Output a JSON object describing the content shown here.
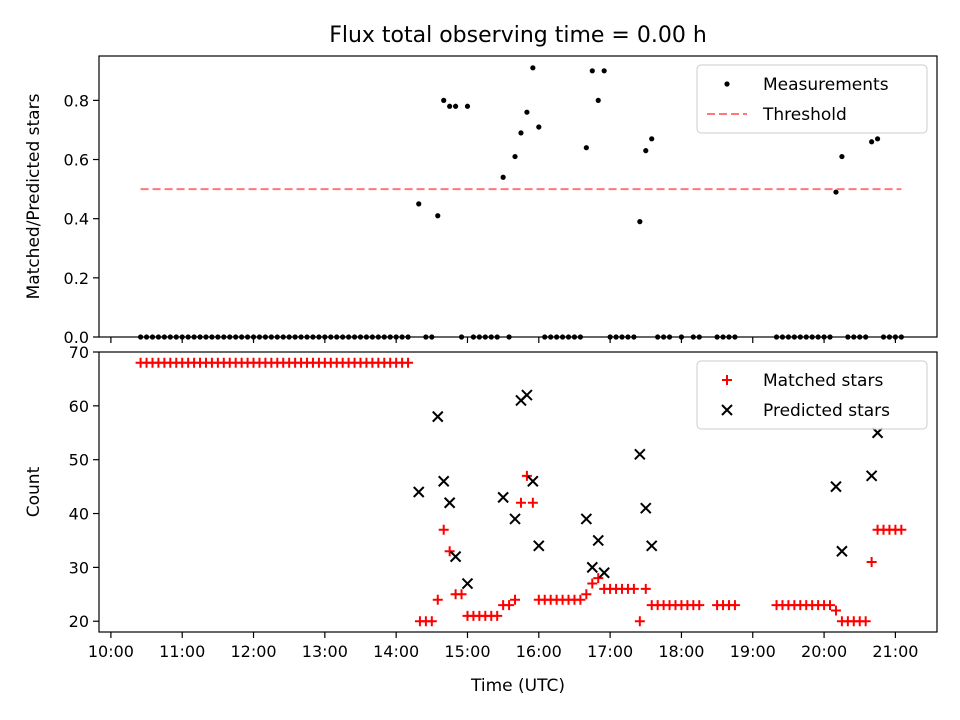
{
  "chart_data": [
    {
      "type": "scatter",
      "title": "Flux total observing time = 0.00 h",
      "xlabel": "",
      "ylabel": "Matched/Predicted stars",
      "xlim": [
        "09:50",
        "21:35"
      ],
      "ylim": [
        0,
        0.95
      ],
      "yticks": [
        0.0,
        0.2,
        0.4,
        0.6,
        0.8
      ],
      "ytick_labels": [
        "0.0",
        "0.2",
        "0.4",
        "0.6",
        "0.8"
      ],
      "legend_position": "top-right",
      "series": [
        {
          "name": "Measurements",
          "marker": "dot",
          "color": "#000000",
          "points": [
            [
              "10:25",
              0
            ],
            [
              "10:30",
              0
            ],
            [
              "10:35",
              0
            ],
            [
              "10:40",
              0
            ],
            [
              "10:45",
              0
            ],
            [
              "10:50",
              0
            ],
            [
              "10:55",
              0
            ],
            [
              "11:00",
              0
            ],
            [
              "11:05",
              0
            ],
            [
              "11:10",
              0
            ],
            [
              "11:15",
              0
            ],
            [
              "11:20",
              0
            ],
            [
              "11:25",
              0
            ],
            [
              "11:30",
              0
            ],
            [
              "11:35",
              0
            ],
            [
              "11:40",
              0
            ],
            [
              "11:45",
              0
            ],
            [
              "11:50",
              0
            ],
            [
              "11:55",
              0
            ],
            [
              "12:00",
              0
            ],
            [
              "12:05",
              0
            ],
            [
              "12:10",
              0
            ],
            [
              "12:15",
              0
            ],
            [
              "12:20",
              0
            ],
            [
              "12:25",
              0
            ],
            [
              "12:30",
              0
            ],
            [
              "12:35",
              0
            ],
            [
              "12:40",
              0
            ],
            [
              "12:45",
              0
            ],
            [
              "12:50",
              0
            ],
            [
              "12:55",
              0
            ],
            [
              "13:00",
              0
            ],
            [
              "13:05",
              0
            ],
            [
              "13:10",
              0
            ],
            [
              "13:15",
              0
            ],
            [
              "13:20",
              0
            ],
            [
              "13:25",
              0
            ],
            [
              "13:30",
              0
            ],
            [
              "13:35",
              0
            ],
            [
              "13:40",
              0
            ],
            [
              "13:45",
              0
            ],
            [
              "13:50",
              0
            ],
            [
              "13:55",
              0
            ],
            [
              "14:00",
              0
            ],
            [
              "14:05",
              0
            ],
            [
              "14:10",
              0
            ],
            [
              "14:19",
              0.45
            ],
            [
              "14:25",
              0
            ],
            [
              "14:30",
              0
            ],
            [
              "14:35",
              0.41
            ],
            [
              "14:40",
              0.8
            ],
            [
              "14:45",
              0.78
            ],
            [
              "14:50",
              0.78
            ],
            [
              "14:55",
              0
            ],
            [
              "15:00",
              0.78
            ],
            [
              "15:05",
              0
            ],
            [
              "15:10",
              0
            ],
            [
              "15:15",
              0
            ],
            [
              "15:20",
              0
            ],
            [
              "15:25",
              0
            ],
            [
              "15:30",
              0.54
            ],
            [
              "15:35",
              0
            ],
            [
              "15:40",
              0.61
            ],
            [
              "15:45",
              0.69
            ],
            [
              "15:50",
              0.76
            ],
            [
              "15:55",
              0.91
            ],
            [
              "16:00",
              0.71
            ],
            [
              "16:05",
              0
            ],
            [
              "16:10",
              0
            ],
            [
              "16:15",
              0
            ],
            [
              "16:20",
              0
            ],
            [
              "16:25",
              0
            ],
            [
              "16:30",
              0
            ],
            [
              "16:35",
              0
            ],
            [
              "16:40",
              0.64
            ],
            [
              "16:45",
              0.9
            ],
            [
              "16:50",
              0.8
            ],
            [
              "16:55",
              0.9
            ],
            [
              "17:00",
              0
            ],
            [
              "17:05",
              0
            ],
            [
              "17:10",
              0
            ],
            [
              "17:15",
              0
            ],
            [
              "17:20",
              0
            ],
            [
              "17:25",
              0.39
            ],
            [
              "17:30",
              0.63
            ],
            [
              "17:35",
              0.67
            ],
            [
              "17:40",
              0
            ],
            [
              "17:45",
              0
            ],
            [
              "17:50",
              0
            ],
            [
              "18:00",
              0
            ],
            [
              "18:10",
              0
            ],
            [
              "18:15",
              0
            ],
            [
              "18:30",
              0
            ],
            [
              "18:35",
              0
            ],
            [
              "18:40",
              0
            ],
            [
              "18:45",
              0
            ],
            [
              "19:20",
              0
            ],
            [
              "19:25",
              0
            ],
            [
              "19:30",
              0
            ],
            [
              "19:35",
              0
            ],
            [
              "19:40",
              0
            ],
            [
              "19:45",
              0
            ],
            [
              "19:50",
              0
            ],
            [
              "19:55",
              0
            ],
            [
              "20:00",
              0
            ],
            [
              "20:05",
              0
            ],
            [
              "20:10",
              0.49
            ],
            [
              "20:15",
              0.61
            ],
            [
              "20:20",
              0
            ],
            [
              "20:25",
              0
            ],
            [
              "20:30",
              0
            ],
            [
              "20:35",
              0
            ],
            [
              "20:40",
              0.66
            ],
            [
              "20:45",
              0.67
            ],
            [
              "20:50",
              0
            ],
            [
              "20:55",
              0
            ],
            [
              "21:00",
              0
            ],
            [
              "21:05",
              0
            ]
          ]
        },
        {
          "name": "Threshold",
          "marker": "dashed-line",
          "color": "#ff7777",
          "points": [
            [
              "10:25",
              0.5
            ],
            [
              "21:05",
              0.5
            ]
          ]
        }
      ]
    },
    {
      "type": "scatter",
      "xlabel": "Time (UTC)",
      "ylabel": "Count",
      "xlim": [
        "09:50",
        "21:35"
      ],
      "ylim": [
        18,
        70
      ],
      "yticks": [
        20,
        30,
        40,
        50,
        60,
        70
      ],
      "xticks": [
        "10:00",
        "11:00",
        "12:00",
        "13:00",
        "14:00",
        "15:00",
        "16:00",
        "17:00",
        "18:00",
        "19:00",
        "20:00",
        "21:00"
      ],
      "legend_position": "top-right",
      "series": [
        {
          "name": "Matched stars",
          "marker": "plus",
          "color": "#ff0000",
          "points": [
            [
              "10:25",
              68
            ],
            [
              "10:30",
              68
            ],
            [
              "10:35",
              68
            ],
            [
              "10:40",
              68
            ],
            [
              "10:45",
              68
            ],
            [
              "10:50",
              68
            ],
            [
              "10:55",
              68
            ],
            [
              "11:00",
              68
            ],
            [
              "11:05",
              68
            ],
            [
              "11:10",
              68
            ],
            [
              "11:15",
              68
            ],
            [
              "11:20",
              68
            ],
            [
              "11:25",
              68
            ],
            [
              "11:30",
              68
            ],
            [
              "11:35",
              68
            ],
            [
              "11:40",
              68
            ],
            [
              "11:45",
              68
            ],
            [
              "11:50",
              68
            ],
            [
              "11:55",
              68
            ],
            [
              "12:00",
              68
            ],
            [
              "12:05",
              68
            ],
            [
              "12:10",
              68
            ],
            [
              "12:15",
              68
            ],
            [
              "12:20",
              68
            ],
            [
              "12:25",
              68
            ],
            [
              "12:30",
              68
            ],
            [
              "12:35",
              68
            ],
            [
              "12:40",
              68
            ],
            [
              "12:45",
              68
            ],
            [
              "12:50",
              68
            ],
            [
              "12:55",
              68
            ],
            [
              "13:00",
              68
            ],
            [
              "13:05",
              68
            ],
            [
              "13:10",
              68
            ],
            [
              "13:15",
              68
            ],
            [
              "13:20",
              68
            ],
            [
              "13:25",
              68
            ],
            [
              "13:30",
              68
            ],
            [
              "13:35",
              68
            ],
            [
              "13:40",
              68
            ],
            [
              "13:45",
              68
            ],
            [
              "13:50",
              68
            ],
            [
              "13:55",
              68
            ],
            [
              "14:00",
              68
            ],
            [
              "14:05",
              68
            ],
            [
              "14:10",
              68
            ],
            [
              "14:20",
              20
            ],
            [
              "14:25",
              20
            ],
            [
              "14:30",
              20
            ],
            [
              "14:35",
              24
            ],
            [
              "14:40",
              37
            ],
            [
              "14:45",
              33
            ],
            [
              "14:50",
              25
            ],
            [
              "14:55",
              25
            ],
            [
              "15:00",
              21
            ],
            [
              "15:05",
              21
            ],
            [
              "15:10",
              21
            ],
            [
              "15:15",
              21
            ],
            [
              "15:20",
              21
            ],
            [
              "15:25",
              21
            ],
            [
              "15:30",
              23
            ],
            [
              "15:35",
              23
            ],
            [
              "15:40",
              24
            ],
            [
              "15:45",
              42
            ],
            [
              "15:50",
              47
            ],
            [
              "15:55",
              42
            ],
            [
              "16:00",
              24
            ],
            [
              "16:05",
              24
            ],
            [
              "16:10",
              24
            ],
            [
              "16:15",
              24
            ],
            [
              "16:20",
              24
            ],
            [
              "16:25",
              24
            ],
            [
              "16:30",
              24
            ],
            [
              "16:35",
              24
            ],
            [
              "16:40",
              25
            ],
            [
              "16:45",
              27
            ],
            [
              "16:50",
              28
            ],
            [
              "16:55",
              26
            ],
            [
              "17:00",
              26
            ],
            [
              "17:05",
              26
            ],
            [
              "17:10",
              26
            ],
            [
              "17:15",
              26
            ],
            [
              "17:20",
              26
            ],
            [
              "17:25",
              20
            ],
            [
              "17:30",
              26
            ],
            [
              "17:35",
              23
            ],
            [
              "17:40",
              23
            ],
            [
              "17:45",
              23
            ],
            [
              "17:50",
              23
            ],
            [
              "17:55",
              23
            ],
            [
              "18:00",
              23
            ],
            [
              "18:05",
              23
            ],
            [
              "18:10",
              23
            ],
            [
              "18:15",
              23
            ],
            [
              "18:30",
              23
            ],
            [
              "18:35",
              23
            ],
            [
              "18:40",
              23
            ],
            [
              "18:45",
              23
            ],
            [
              "19:20",
              23
            ],
            [
              "19:25",
              23
            ],
            [
              "19:30",
              23
            ],
            [
              "19:35",
              23
            ],
            [
              "19:40",
              23
            ],
            [
              "19:45",
              23
            ],
            [
              "19:50",
              23
            ],
            [
              "19:55",
              23
            ],
            [
              "20:00",
              23
            ],
            [
              "20:05",
              23
            ],
            [
              "20:10",
              22
            ],
            [
              "20:15",
              20
            ],
            [
              "20:20",
              20
            ],
            [
              "20:25",
              20
            ],
            [
              "20:30",
              20
            ],
            [
              "20:35",
              20
            ],
            [
              "20:40",
              31
            ],
            [
              "20:45",
              37
            ],
            [
              "20:50",
              37
            ],
            [
              "20:55",
              37
            ],
            [
              "21:00",
              37
            ],
            [
              "21:05",
              37
            ]
          ]
        },
        {
          "name": "Predicted stars",
          "marker": "x",
          "color": "#000000",
          "points": [
            [
              "14:19",
              44
            ],
            [
              "14:35",
              58
            ],
            [
              "14:40",
              46
            ],
            [
              "14:45",
              42
            ],
            [
              "14:50",
              32
            ],
            [
              "15:00",
              27
            ],
            [
              "15:30",
              43
            ],
            [
              "15:40",
              39
            ],
            [
              "15:45",
              61
            ],
            [
              "15:50",
              62
            ],
            [
              "15:55",
              46
            ],
            [
              "16:00",
              34
            ],
            [
              "16:40",
              39
            ],
            [
              "16:45",
              30
            ],
            [
              "16:50",
              35
            ],
            [
              "16:55",
              29
            ],
            [
              "17:25",
              51
            ],
            [
              "17:30",
              41
            ],
            [
              "17:35",
              34
            ],
            [
              "20:10",
              45
            ],
            [
              "20:15",
              33
            ],
            [
              "20:40",
              47
            ],
            [
              "20:45",
              55
            ]
          ]
        }
      ]
    }
  ]
}
